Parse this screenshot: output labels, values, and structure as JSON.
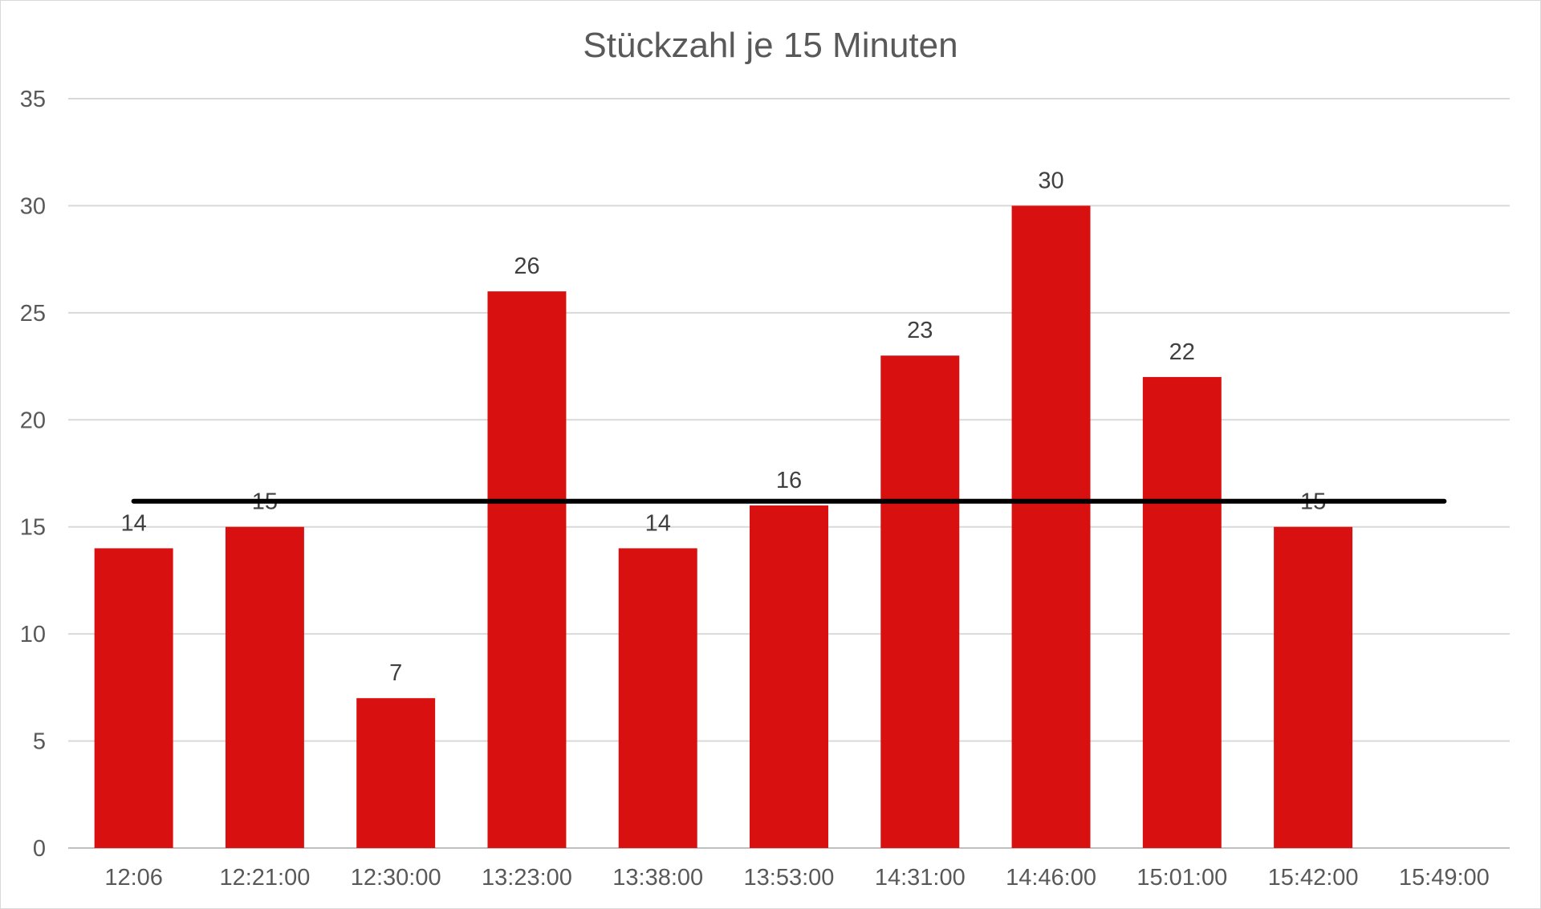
{
  "chart_data": {
    "type": "bar",
    "title": "Stückzahl je 15 Minuten",
    "xlabel": "",
    "ylabel": "",
    "categories": [
      "12:06",
      "12:21:00",
      "12:30:00",
      "13:23:00",
      "13:38:00",
      "13:53:00",
      "14:31:00",
      "14:46:00",
      "15:01:00",
      "15:42:00",
      "15:49:00"
    ],
    "series": [
      {
        "values": [
          14,
          15,
          7,
          26,
          14,
          16,
          23,
          30,
          22,
          15,
          null
        ],
        "color": "#d91010"
      }
    ],
    "data_labels": [
      "14",
      "15",
      "7",
      "26",
      "14",
      "16",
      "23",
      "30",
      "22",
      "15",
      ""
    ],
    "reference_line": {
      "value": 16.2,
      "color": "#000000"
    },
    "ylim": [
      0,
      35
    ],
    "yticks": [
      0,
      5,
      10,
      15,
      20,
      25,
      30,
      35
    ],
    "grid": true,
    "legend": "none"
  }
}
